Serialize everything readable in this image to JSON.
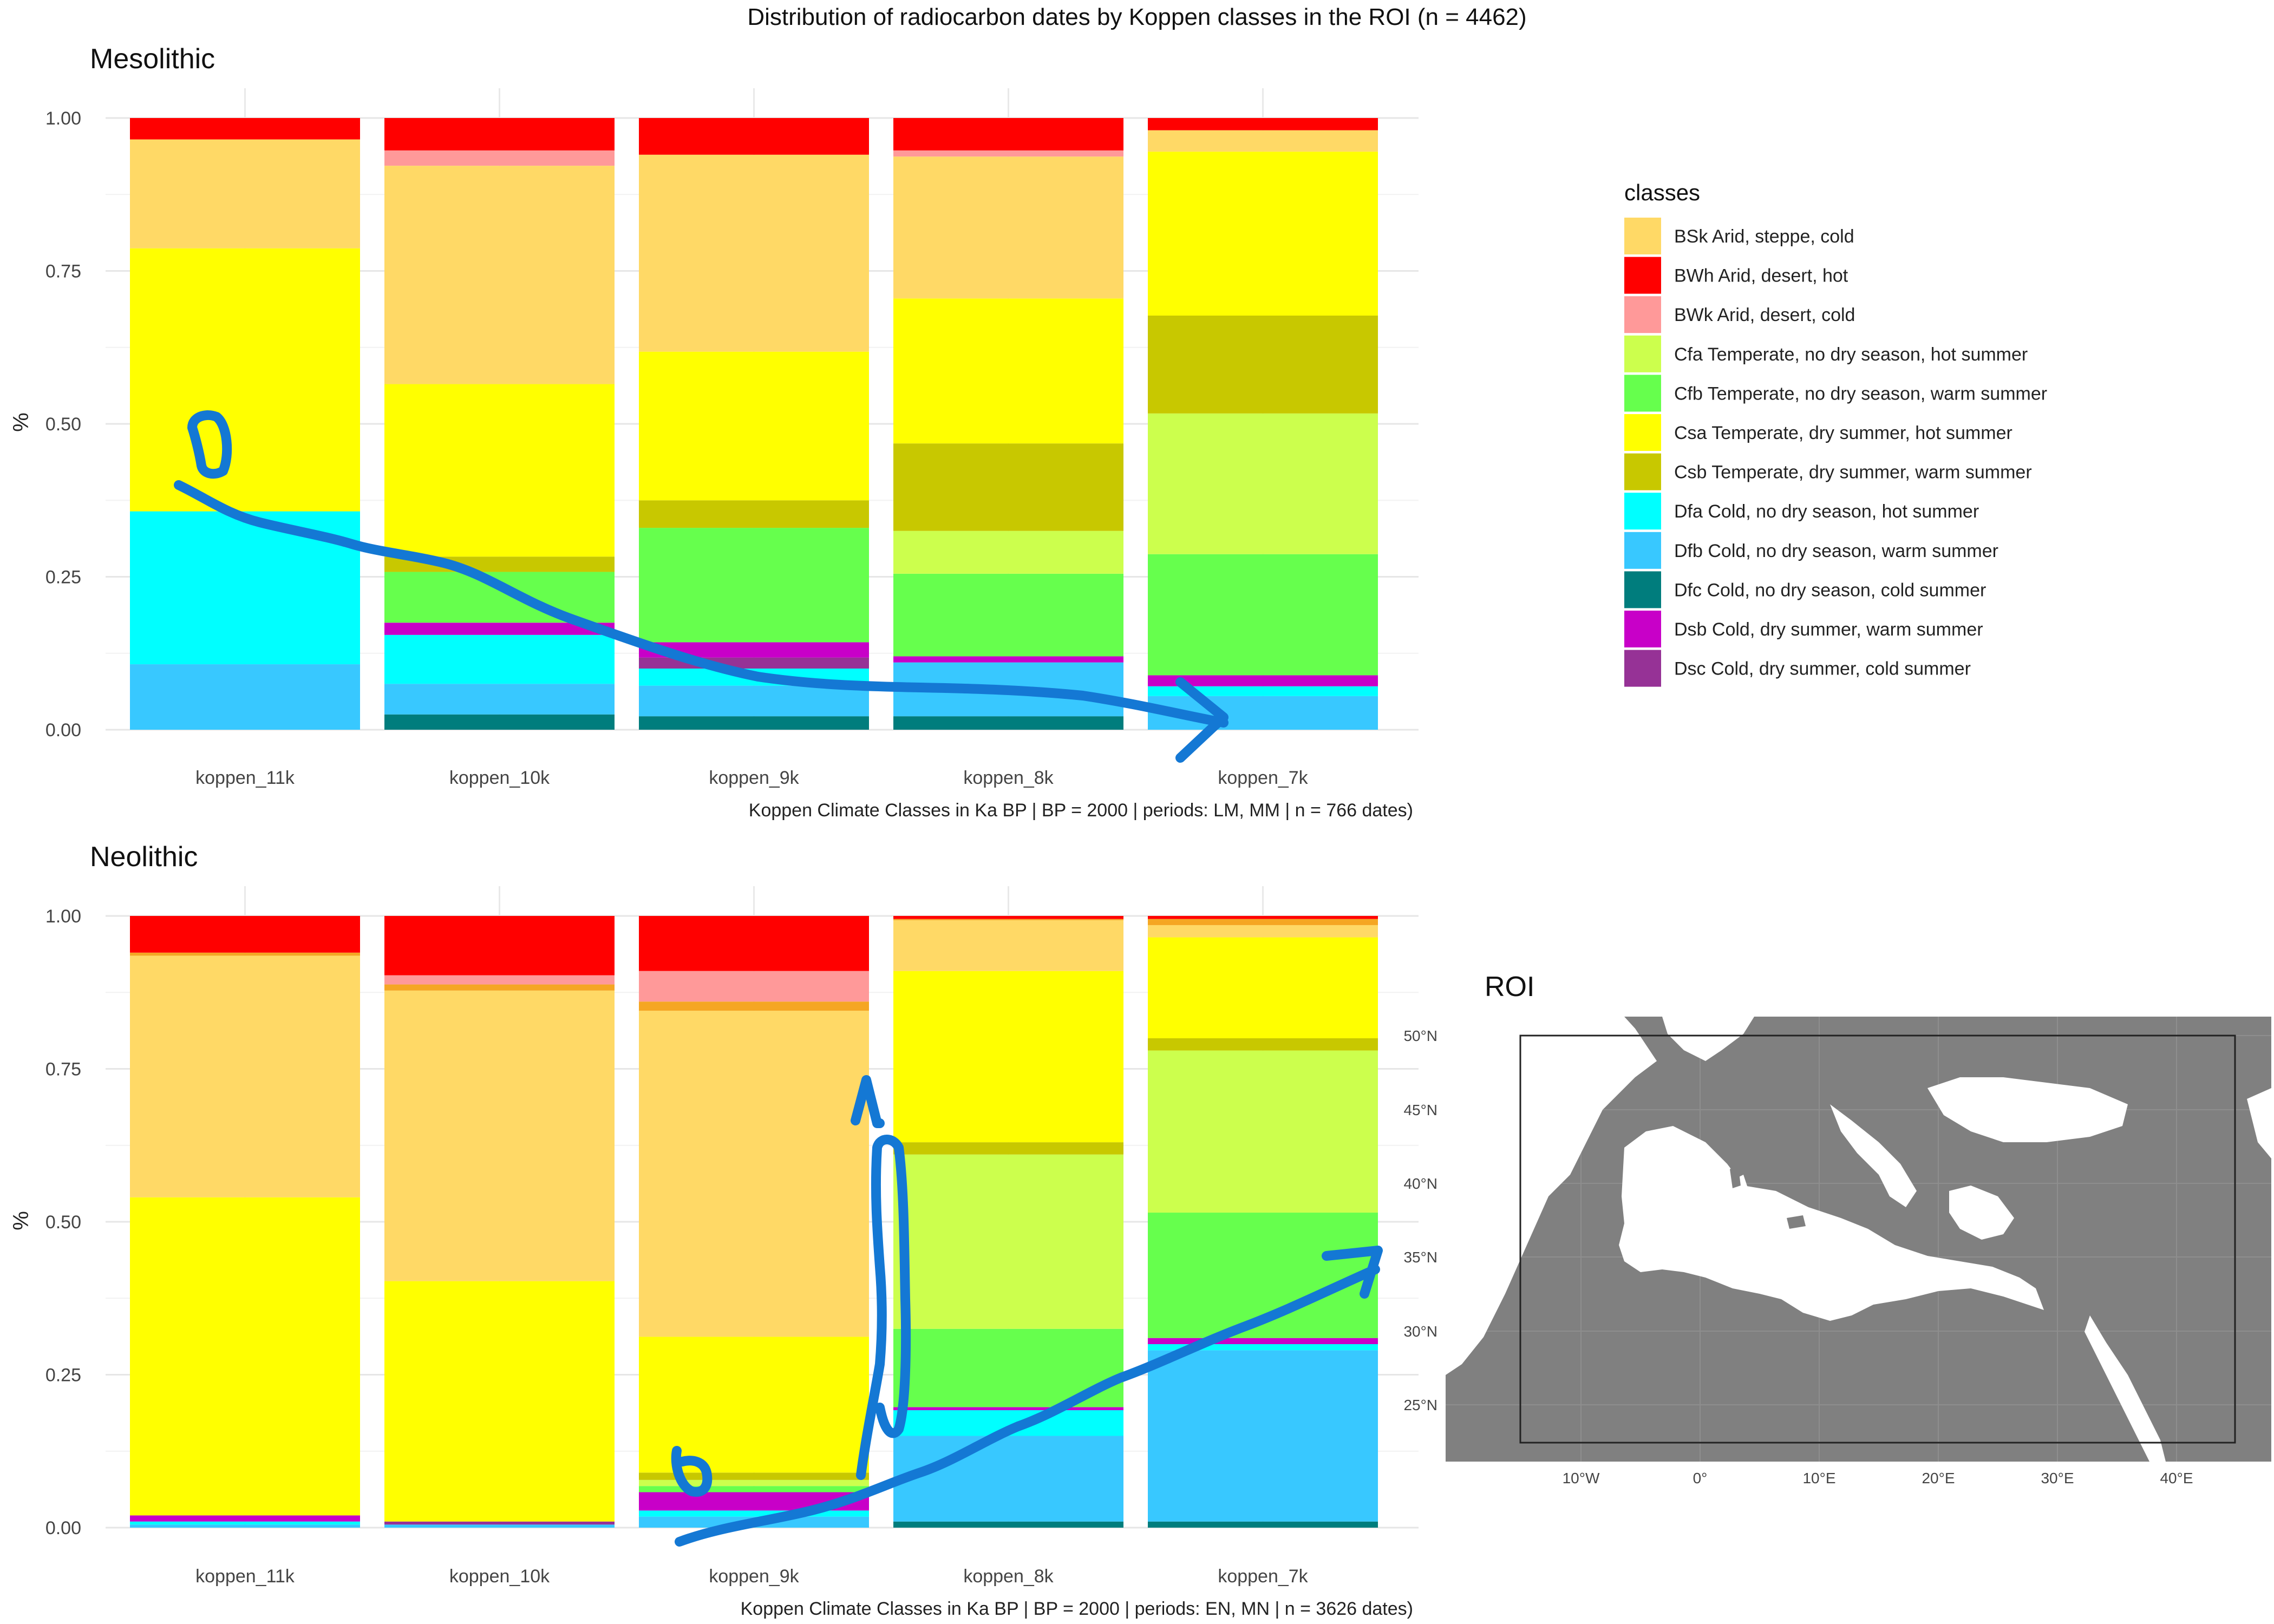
{
  "title": "Distribution of radiocarbon dates by Koppen classes in the ROI (n = 4462)",
  "legend": {
    "title": "classes",
    "entries": [
      {
        "label": "BSk Arid, steppe, cold",
        "color": "#FFD966"
      },
      {
        "label": "BWh Arid, desert, hot",
        "color": "#FF0000"
      },
      {
        "label": "BWk Arid, desert, cold",
        "color": "#FF9999"
      },
      {
        "label": "Cfa Temperate, no dry season, hot summer",
        "color": "#CCFF4D"
      },
      {
        "label": "Cfb Temperate, no dry season, warm summer",
        "color": "#66FF4D"
      },
      {
        "label": "Csa Temperate, dry summer, hot summer",
        "color": "#FFFF00"
      },
      {
        "label": "Csb Temperate, dry summer, warm summer",
        "color": "#C8C800"
      },
      {
        "label": "Dfa Cold, no dry season, hot summer",
        "color": "#00FFFF"
      },
      {
        "label": "Dfb Cold, no dry season, warm summer",
        "color": "#38C8FF"
      },
      {
        "label": "Dfc Cold, no dry season, cold summer",
        "color": "#007D7D"
      },
      {
        "label": "Dsb Cold, dry summer, warm summer",
        "color": "#C800C8"
      },
      {
        "label": "Dsc Cold, dry summer, cold summer",
        "color": "#963296"
      }
    ]
  },
  "extra_colors": {
    "orange": "#F5A623"
  },
  "chart_data": [
    {
      "type": "bar",
      "title": "Mesolithic",
      "ylabel": "%",
      "xlabel": "Koppen Climate Classes in Ka BP | BP = 2000 | periods: LM, MM | n = 766 dates)",
      "categories": [
        "koppen_11k",
        "koppen_10k",
        "koppen_9k",
        "koppen_8k",
        "koppen_7k"
      ],
      "yticks": [
        "0.00",
        "0.25",
        "0.50",
        "0.75",
        "1.00"
      ],
      "ylim": [
        0,
        1
      ],
      "stacked_bottom_to_top": [
        [
          {
            "class": "Dfb",
            "value": 0.107
          },
          {
            "class": "Dfa",
            "value": 0.25
          },
          {
            "class": "Csa",
            "value": 0.43
          },
          {
            "class": "BSk",
            "value": 0.178
          },
          {
            "class": "BWh",
            "value": 0.035
          }
        ],
        [
          {
            "class": "Dfc",
            "value": 0.025
          },
          {
            "class": "Dfb",
            "value": 0.05
          },
          {
            "class": "Dfa",
            "value": 0.08
          },
          {
            "class": "Dsb",
            "value": 0.02
          },
          {
            "class": "Cfb",
            "value": 0.083
          },
          {
            "class": "Csb",
            "value": 0.025
          },
          {
            "class": "Csa",
            "value": 0.282
          },
          {
            "class": "BSk",
            "value": 0.357
          },
          {
            "class": "BWk",
            "value": 0.025
          },
          {
            "class": "BWh",
            "value": 0.053
          }
        ],
        [
          {
            "class": "Dfc",
            "value": 0.022
          },
          {
            "class": "Dfb",
            "value": 0.05
          },
          {
            "class": "Dfa",
            "value": 0.028
          },
          {
            "class": "Dsc",
            "value": 0.018
          },
          {
            "class": "Dsb",
            "value": 0.025
          },
          {
            "class": "Cfb",
            "value": 0.187
          },
          {
            "class": "Csb",
            "value": 0.045
          },
          {
            "class": "Csa",
            "value": 0.243
          },
          {
            "class": "BSk",
            "value": 0.322
          },
          {
            "class": "BWh",
            "value": 0.06
          }
        ],
        [
          {
            "class": "Dfc",
            "value": 0.022
          },
          {
            "class": "Dfb",
            "value": 0.088
          },
          {
            "class": "Dsb",
            "value": 0.01
          },
          {
            "class": "Cfb",
            "value": 0.135
          },
          {
            "class": "Cfa",
            "value": 0.07
          },
          {
            "class": "Csb",
            "value": 0.143
          },
          {
            "class": "Csa",
            "value": 0.237
          },
          {
            "class": "BSk",
            "value": 0.232
          },
          {
            "class": "BWk",
            "value": 0.01
          },
          {
            "class": "BWh",
            "value": 0.053
          }
        ],
        [
          {
            "class": "Dfb",
            "value": 0.055
          },
          {
            "class": "Dfa",
            "value": 0.016
          },
          {
            "class": "Dsb",
            "value": 0.018
          },
          {
            "class": "Cfb",
            "value": 0.198
          },
          {
            "class": "Cfa",
            "value": 0.23
          },
          {
            "class": "Csb",
            "value": 0.16
          },
          {
            "class": "Csa",
            "value": 0.268
          },
          {
            "class": "BSk",
            "value": 0.035
          },
          {
            "class": "BWh",
            "value": 0.02
          }
        ]
      ]
    },
    {
      "type": "bar",
      "title": "Neolithic",
      "ylabel": "%",
      "xlabel": "Koppen Climate Classes in Ka BP | BP = 2000 | periods: EN, MN | n = 3626 dates)",
      "categories": [
        "koppen_11k",
        "koppen_10k",
        "koppen_9k",
        "koppen_8k",
        "koppen_7k"
      ],
      "yticks": [
        "0.00",
        "0.25",
        "0.50",
        "0.75",
        "1.00"
      ],
      "ylim": [
        0,
        1
      ],
      "stacked_bottom_to_top": [
        [
          {
            "class": "Dfb",
            "value": 0.005
          },
          {
            "class": "Dfa",
            "value": 0.005
          },
          {
            "class": "Dsb",
            "value": 0.01
          },
          {
            "class": "Csa",
            "value": 0.52
          },
          {
            "class": "BSk",
            "value": 0.395
          },
          {
            "class": "orange",
            "value": 0.005
          },
          {
            "class": "BWh",
            "value": 0.06
          }
        ],
        [
          {
            "class": "Dfb",
            "value": 0.005
          },
          {
            "class": "Dsc",
            "value": 0.005
          },
          {
            "class": "Csa",
            "value": 0.393
          },
          {
            "class": "BSk",
            "value": 0.475
          },
          {
            "class": "orange",
            "value": 0.01
          },
          {
            "class": "BWk",
            "value": 0.015
          },
          {
            "class": "BWh",
            "value": 0.097
          }
        ],
        [
          {
            "class": "Dfb",
            "value": 0.018
          },
          {
            "class": "Dfa",
            "value": 0.01
          },
          {
            "class": "Dsb",
            "value": 0.03
          },
          {
            "class": "Cfb",
            "value": 0.01
          },
          {
            "class": "Cfa",
            "value": 0.01
          },
          {
            "class": "Csb",
            "value": 0.012
          },
          {
            "class": "Csa",
            "value": 0.222
          },
          {
            "class": "BSk",
            "value": 0.533
          },
          {
            "class": "orange",
            "value": 0.015
          },
          {
            "class": "BWk",
            "value": 0.05
          },
          {
            "class": "BWh",
            "value": 0.09
          }
        ],
        [
          {
            "class": "Dfc",
            "value": 0.01
          },
          {
            "class": "Dfb",
            "value": 0.14
          },
          {
            "class": "Dfa",
            "value": 0.042
          },
          {
            "class": "Dsb",
            "value": 0.005
          },
          {
            "class": "Cfb",
            "value": 0.128
          },
          {
            "class": "Cfa",
            "value": 0.285
          },
          {
            "class": "Csb",
            "value": 0.02
          },
          {
            "class": "Csa",
            "value": 0.28
          },
          {
            "class": "BSk",
            "value": 0.083
          },
          {
            "class": "orange",
            "value": 0.002
          },
          {
            "class": "BWh",
            "value": 0.005
          }
        ],
        [
          {
            "class": "Dfc",
            "value": 0.01
          },
          {
            "class": "Dfb",
            "value": 0.28
          },
          {
            "class": "Dfa",
            "value": 0.01
          },
          {
            "class": "Dsb",
            "value": 0.01
          },
          {
            "class": "Cfb",
            "value": 0.205
          },
          {
            "class": "Cfa",
            "value": 0.265
          },
          {
            "class": "Csb",
            "value": 0.02
          },
          {
            "class": "Csa",
            "value": 0.165
          },
          {
            "class": "BSk",
            "value": 0.02
          },
          {
            "class": "orange",
            "value": 0.01
          },
          {
            "class": "BWh",
            "value": 0.005
          }
        ]
      ]
    }
  ],
  "map": {
    "title": "ROI",
    "lat_ticks": [
      "50°N",
      "45°N",
      "40°N",
      "35°N",
      "30°N",
      "25°N"
    ],
    "lon_ticks": [
      "10°W",
      "0°",
      "10°E",
      "20°E",
      "30°E",
      "40°E"
    ],
    "land_color": "#808080",
    "sea_color": "#FFFFFF"
  },
  "annotation_color": "#1478D4"
}
